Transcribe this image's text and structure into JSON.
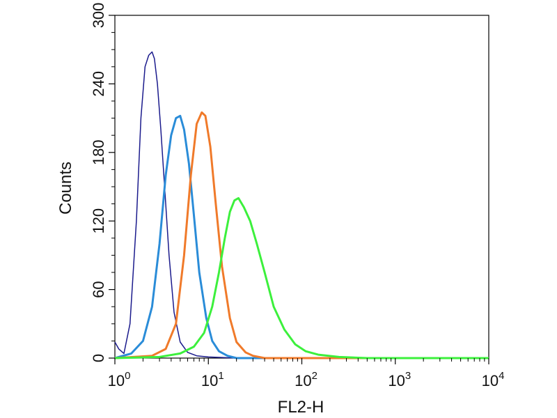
{
  "chart_data": {
    "type": "line",
    "title": "",
    "xlabel": "FL2-H",
    "ylabel": "Counts",
    "x_scale": "log",
    "xlim": [
      1,
      10000
    ],
    "ylim": [
      0,
      300
    ],
    "grid": false,
    "legend": "none",
    "x_ticks": [
      {
        "value": 1,
        "base": "10",
        "exp": "0"
      },
      {
        "value": 10,
        "base": "10",
        "exp": "1"
      },
      {
        "value": 100,
        "base": "10",
        "exp": "2"
      },
      {
        "value": 1000,
        "base": "10",
        "exp": "3"
      },
      {
        "value": 10000,
        "base": "10",
        "exp": "4"
      }
    ],
    "y_ticks": [
      {
        "value": 0,
        "label": "0"
      },
      {
        "value": 60,
        "label": "60"
      },
      {
        "value": 120,
        "label": "120"
      },
      {
        "value": 180,
        "label": "180"
      },
      {
        "value": 240,
        "label": "240"
      },
      {
        "value": 300,
        "label": "300"
      }
    ],
    "series": [
      {
        "color": "#1a1a8c",
        "line_width": 1.5,
        "x": [
          1.0,
          1.1,
          1.25,
          1.45,
          1.7,
          1.9,
          2.1,
          2.3,
          2.5,
          2.65,
          2.85,
          3.1,
          3.4,
          3.8,
          4.3,
          5.0,
          6.0,
          7.5,
          10,
          20,
          50,
          10000
        ],
        "y": [
          14,
          8,
          4,
          30,
          120,
          210,
          255,
          265,
          268,
          262,
          240,
          200,
          150,
          90,
          40,
          14,
          5,
          2,
          1,
          0,
          0,
          0
        ]
      },
      {
        "color": "#2a8cd8",
        "line_width": 3,
        "x": [
          1.0,
          1.5,
          2.0,
          2.5,
          3.0,
          3.5,
          4.0,
          4.5,
          5.0,
          5.5,
          6.2,
          7.0,
          8.0,
          9.5,
          11,
          13,
          16,
          20,
          10000
        ],
        "y": [
          0,
          4,
          15,
          45,
          100,
          160,
          195,
          210,
          212,
          200,
          170,
          125,
          75,
          35,
          15,
          6,
          2,
          0,
          0
        ]
      },
      {
        "color": "#f07a2a",
        "line_width": 3,
        "x": [
          1.0,
          2.5,
          3.5,
          4.5,
          5.5,
          6.5,
          7.5,
          8.5,
          9.3,
          10.5,
          12,
          14,
          17,
          20,
          25,
          30,
          40,
          10000
        ],
        "y": [
          0,
          2,
          8,
          30,
          90,
          160,
          205,
          215,
          212,
          185,
          135,
          80,
          35,
          14,
          5,
          2,
          0,
          0
        ]
      },
      {
        "color": "#3cf03c",
        "line_width": 3,
        "x": [
          1.0,
          3.0,
          5.0,
          7.0,
          9.0,
          11,
          13,
          15,
          17,
          19,
          21,
          24,
          28,
          33,
          40,
          50,
          65,
          85,
          110,
          150,
          250,
          500,
          10000
        ],
        "y": [
          0,
          1,
          4,
          10,
          22,
          45,
          75,
          105,
          128,
          138,
          140,
          132,
          120,
          100,
          75,
          45,
          25,
          12,
          6,
          3,
          1,
          0,
          0
        ]
      }
    ]
  }
}
